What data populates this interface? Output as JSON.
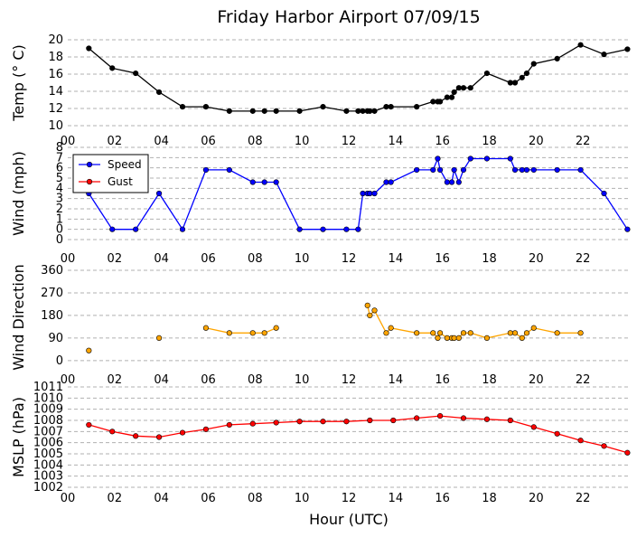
{
  "chart_data": {
    "title": "Friday Harbor Airport 07/09/15",
    "xlabel": "Hour (UTC)",
    "xlim": [
      0,
      24
    ],
    "x_ticks": [
      "00",
      "02",
      "04",
      "06",
      "08",
      "10",
      "12",
      "14",
      "16",
      "18",
      "20",
      "22"
    ],
    "grid": "horizontal dashed",
    "panels": [
      {
        "id": "temp",
        "type": "line",
        "ylabel": "Temp (° C)",
        "ylim": [
          10,
          20
        ],
        "y_ticks": [
          "10",
          "12",
          "14",
          "16",
          "18",
          "20"
        ],
        "series": [
          {
            "color": "#000000",
            "x": [
              0.9,
              1.9,
              2.9,
              3.9,
              4.9,
              5.9,
              6.9,
              7.9,
              8.4,
              8.9,
              9.9,
              10.9,
              11.9,
              12.4,
              12.6,
              12.8,
              12.9,
              13.1,
              13.6,
              13.8,
              14.9,
              15.6,
              15.8,
              15.9,
              16.2,
              16.4,
              16.5,
              16.7,
              16.9,
              17.2,
              17.9,
              18.9,
              19.1,
              19.4,
              19.6,
              19.9,
              20.9,
              21.9,
              22.9,
              23.9
            ],
            "values": [
              19,
              16.7,
              16.1,
              13.9,
              12.2,
              12.2,
              11.7,
              11.7,
              11.7,
              11.7,
              11.7,
              12.2,
              11.7,
              11.7,
              11.7,
              11.7,
              11.7,
              11.7,
              12.2,
              12.2,
              12.2,
              12.8,
              12.8,
              12.8,
              13.3,
              13.3,
              13.9,
              14.4,
              14.4,
              14.4,
              16.1,
              15,
              15,
              15.6,
              16.1,
              17.2,
              17.8,
              19.4,
              18.3,
              18.9
            ]
          }
        ]
      },
      {
        "id": "wind",
        "type": "line",
        "ylabel": "Wind (mph)",
        "ylim": [
          0,
          8
        ],
        "y_ticks": [
          "0",
          "0",
          "1",
          "2",
          "3",
          "4",
          "5",
          "6",
          "7",
          "8"
        ],
        "legend": "top-left",
        "series": [
          {
            "name": "Speed",
            "color": "#0000ff",
            "x": [
              0.9,
              1.9,
              2.9,
              3.9,
              4.9,
              5.9,
              6.9,
              7.9,
              8.4,
              8.9,
              9.9,
              10.9,
              11.9,
              12.4,
              12.6,
              12.8,
              12.9,
              13.1,
              13.6,
              13.8,
              14.9,
              15.6,
              15.8,
              15.9,
              16.2,
              16.4,
              16.5,
              16.7,
              16.9,
              17.2,
              17.9,
              18.9,
              19.1,
              19.4,
              19.6,
              19.9,
              20.9,
              21.9,
              22.9,
              23.9
            ],
            "values": [
              3.5,
              0,
              0,
              3.5,
              0,
              5.8,
              5.8,
              4.6,
              4.6,
              4.6,
              0,
              0,
              0,
              0,
              3.5,
              3.5,
              3.5,
              3.5,
              4.6,
              4.6,
              5.8,
              5.8,
              6.9,
              5.8,
              4.6,
              4.6,
              5.8,
              4.6,
              5.8,
              6.9,
              6.9,
              6.9,
              5.8,
              5.8,
              5.8,
              5.8,
              5.8,
              5.8,
              3.5,
              0
            ]
          },
          {
            "name": "Gust",
            "color": "#ff0000",
            "x": [],
            "values": []
          }
        ]
      },
      {
        "id": "dir",
        "type": "line",
        "ylabel": "Wind Direction",
        "ylim": [
          0,
          360
        ],
        "y_ticks": [
          "0",
          "90",
          "180",
          "270",
          "360"
        ],
        "series": [
          {
            "color": "#ffa500",
            "segments": [
              {
                "x": [
                  0.9
                ],
                "values": [
                  40
                ]
              },
              {
                "x": [
                  3.9
                ],
                "values": [
                  90
                ]
              },
              {
                "x": [
                  5.9,
                  6.9,
                  7.9,
                  8.4,
                  8.9
                ],
                "values": [
                  130,
                  110,
                  110,
                  110,
                  130
                ]
              },
              {
                "x": [
                  12.8,
                  12.9,
                  13.1,
                  13.6,
                  13.8,
                  14.9,
                  15.6,
                  15.8,
                  15.9,
                  16.2,
                  16.4,
                  16.5,
                  16.7,
                  16.9,
                  17.2,
                  17.9,
                  18.9,
                  19.1,
                  19.4,
                  19.6,
                  19.9,
                  20.9,
                  21.9
                ],
                "values": [
                  220,
                  180,
                  200,
                  110,
                  130,
                  110,
                  110,
                  90,
                  110,
                  90,
                  90,
                  90,
                  90,
                  110,
                  110,
                  90,
                  110,
                  110,
                  90,
                  110,
                  130,
                  110,
                  110
                ]
              }
            ]
          }
        ]
      },
      {
        "id": "mslp",
        "type": "line",
        "ylabel": "MSLP (hPa)",
        "ylim": [
          1002,
          1011
        ],
        "y_ticks": [
          "1002",
          "1003",
          "1004",
          "1005",
          "1006",
          "1007",
          "1008",
          "1009",
          "1010",
          "1011"
        ],
        "series": [
          {
            "color": "#ff0000",
            "x": [
              0.9,
              1.9,
              2.9,
              3.9,
              4.9,
              5.9,
              6.9,
              7.9,
              8.9,
              9.9,
              10.9,
              11.9,
              12.9,
              13.9,
              14.9,
              15.9,
              16.9,
              17.9,
              18.9,
              19.9,
              20.9,
              21.9,
              22.9,
              23.9
            ],
            "values": [
              1007.6,
              1007.0,
              1006.6,
              1006.5,
              1006.9,
              1007.2,
              1007.6,
              1007.7,
              1007.8,
              1007.9,
              1007.9,
              1007.9,
              1008.0,
              1008.0,
              1008.2,
              1008.4,
              1008.2,
              1008.1,
              1008.0,
              1007.4,
              1006.8,
              1006.2,
              1005.7,
              1005.1
            ]
          }
        ]
      }
    ]
  }
}
